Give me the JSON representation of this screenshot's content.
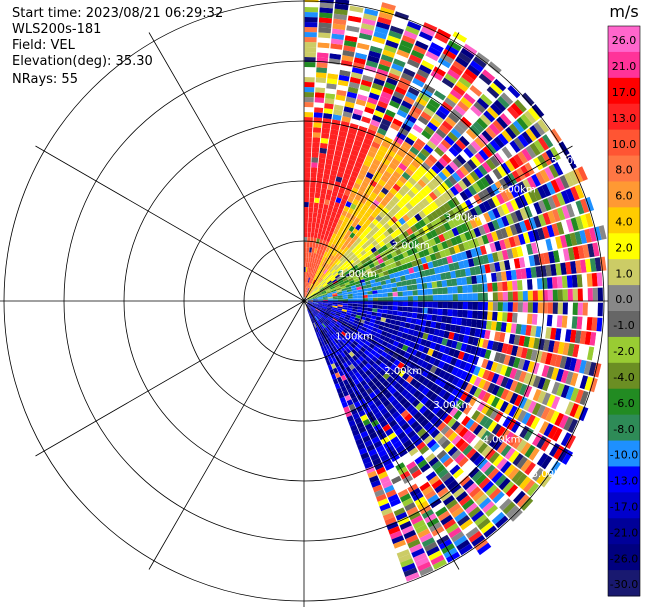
{
  "header": {
    "start_time": "Start time: 2023/08/21 06:29:32",
    "instrument": "WLS200s-181",
    "field": "Field: VEL",
    "elevation": "Elevation(deg): 35.30",
    "nrays": "NRays: 55"
  },
  "chart_data": {
    "type": "heatmap",
    "projection": "polar-ppi",
    "field": "VEL",
    "units": "m/s",
    "azimuth_range_deg": [
      0,
      160
    ],
    "n_rays": 55,
    "max_range_km": 7,
    "range_ring_labels": [
      "1.00km",
      "2.00km",
      "3.00km",
      "4.00km",
      "5.00km"
    ],
    "range_ring_km": [
      1,
      2,
      3,
      4,
      5
    ],
    "spoke_angles_deg": [
      0,
      30,
      60,
      90,
      120,
      150,
      180,
      210,
      240,
      270,
      300,
      330
    ],
    "colorbar": {
      "unit_label": "m/s",
      "ticks": [
        "26.0",
        "21.0",
        "17.0",
        "13.0",
        "10.0",
        "8.0",
        "6.0",
        "4.0",
        "2.0",
        "1.0",
        "0.0",
        "-1.0",
        "-2.0",
        "-4.0",
        "-6.0",
        "-8.0",
        "-10.0",
        "-13.0",
        "-17.0",
        "-21.0",
        "-26.0",
        "-30.0"
      ],
      "colors": [
        "#ff66cc",
        "#ff3399",
        "#ff0000",
        "#ff2222",
        "#ff5533",
        "#ff7744",
        "#ff9933",
        "#ffcc00",
        "#ffff00",
        "#cccc66",
        "#888888",
        "#666666",
        "#99cc33",
        "#6b8e23",
        "#228b22",
        "#2e8b57",
        "#1e90ff",
        "#0000ff",
        "#0000cc",
        "#000099",
        "#000080",
        "#191970"
      ]
    }
  }
}
